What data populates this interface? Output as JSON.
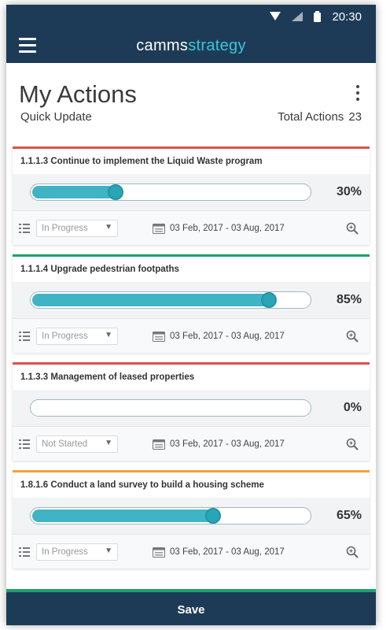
{
  "statusbar": {
    "time": "20:30"
  },
  "appbar": {
    "brand_part1": "camms",
    "brand_part2": "strategy"
  },
  "header": {
    "title": "My Actions",
    "subtitle": "Quick Update",
    "total_label": "Total Actions",
    "total_value": "23"
  },
  "colors": {
    "navy": "#1d3b57",
    "accent": "#3cc6d8",
    "red": "#d9534f",
    "green": "#1aa36c",
    "orange": "#f0a23a"
  },
  "actions": [
    {
      "title": "1.1.1.3 Continue to implement the Liquid Waste program",
      "progress": 30,
      "progress_label": "30%",
      "status": "In Progress",
      "dates": "03 Feb, 2017 - 03 Aug, 2017",
      "accent": "#d9534f"
    },
    {
      "title": "1.1.1.4 Upgrade pedestrian footpaths",
      "progress": 85,
      "progress_label": "85%",
      "status": "In Progress",
      "dates": "03 Feb, 2017 - 03 Aug, 2017",
      "accent": "#1aa36c"
    },
    {
      "title": "1.1.3.3 Management of leased properties",
      "progress": 0,
      "progress_label": "0%",
      "status": "Not Started",
      "dates": "03 Feb, 2017 - 03 Aug, 2017",
      "accent": "#d9534f"
    },
    {
      "title": "1.8.1.6 Conduct a land survey to build a housing scheme",
      "progress": 65,
      "progress_label": "65%",
      "status": "In Progress",
      "dates": "03 Feb, 2017 - 03 Aug, 2017",
      "accent": "#f0a23a"
    }
  ],
  "footer": {
    "save_label": "Save"
  }
}
